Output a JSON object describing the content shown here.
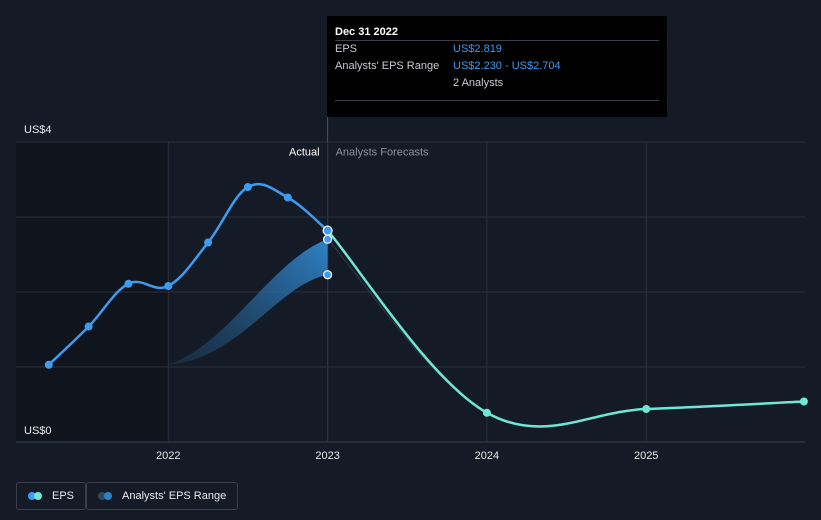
{
  "chart_data": {
    "type": "line",
    "y_axis": {
      "min": 0,
      "max": 4,
      "top_label": "US$4",
      "bottom_label": "US$0"
    },
    "x_axis": {
      "ticks": [
        "2022",
        "2023",
        "2024",
        "2025"
      ]
    },
    "divider": {
      "x": "2023",
      "left_label": "Actual",
      "right_label": "Analysts Forecasts"
    },
    "series": [
      {
        "name": "EPS",
        "kind": "actual",
        "color": "#3d9bf0",
        "points": [
          {
            "x": 2021.25,
            "y": 1.03
          },
          {
            "x": 2021.5,
            "y": 1.54
          },
          {
            "x": 2021.75,
            "y": 2.11
          },
          {
            "x": 2022.0,
            "y": 2.08
          },
          {
            "x": 2022.25,
            "y": 2.66
          },
          {
            "x": 2022.5,
            "y": 3.4
          },
          {
            "x": 2022.75,
            "y": 3.26
          },
          {
            "x": 2023.0,
            "y": 2.819
          }
        ]
      },
      {
        "name": "EPS",
        "kind": "forecast",
        "color": "#6ee7d5",
        "points": [
          {
            "x": 2023.0,
            "y": 2.819
          },
          {
            "x": 2024.0,
            "y": 0.39
          },
          {
            "x": 2025.0,
            "y": 0.44
          },
          {
            "x": 2025.99,
            "y": 0.54
          }
        ]
      },
      {
        "name": "Analysts' EPS Range",
        "kind": "range",
        "color": "#2f82c6",
        "points": [
          {
            "x": 2022.0,
            "low": 1.03,
            "high": 1.03
          },
          {
            "x": 2023.0,
            "low": 2.23,
            "high": 2.704
          }
        ]
      }
    ],
    "legend": [
      {
        "label": "EPS",
        "colors": [
          "#3d9bf0",
          "#6ee7d5"
        ]
      },
      {
        "label": "Analysts' EPS Range",
        "colors": [
          "#2f82c6",
          "#2a4a5c"
        ]
      }
    ]
  },
  "tooltip": {
    "date": "Dec 31 2022",
    "rows": [
      {
        "key": "EPS",
        "value": "US$2.819"
      },
      {
        "key": "Analysts' EPS Range",
        "value": "US$2.230 - US$2.704"
      },
      {
        "key": "",
        "value": "2 Analysts"
      }
    ]
  }
}
